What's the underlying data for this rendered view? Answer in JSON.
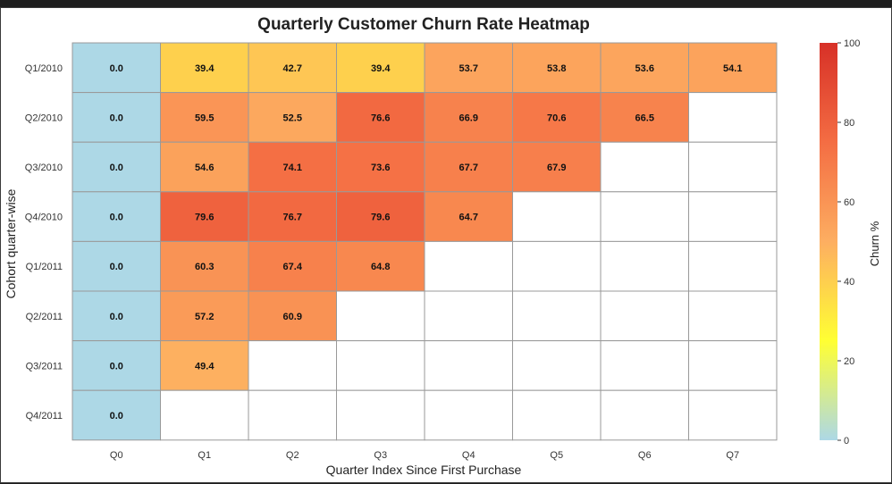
{
  "chart_data": {
    "type": "heatmap",
    "title": "Quarterly Customer Churn Rate Heatmap",
    "xlabel": "Quarter Index Since First Purchase",
    "ylabel": "Cohort quarter-wise",
    "x_categories": [
      "Q0",
      "Q1",
      "Q2",
      "Q3",
      "Q4",
      "Q5",
      "Q6",
      "Q7"
    ],
    "y_categories": [
      "Q1/2010",
      "Q2/2010",
      "Q3/2010",
      "Q4/2010",
      "Q1/2011",
      "Q2/2011",
      "Q3/2011",
      "Q4/2011"
    ],
    "values": [
      [
        0.0,
        39.4,
        42.7,
        39.4,
        53.7,
        53.8,
        53.6,
        54.1
      ],
      [
        0.0,
        59.5,
        52.5,
        76.6,
        66.9,
        70.6,
        66.5,
        null
      ],
      [
        0.0,
        54.6,
        74.1,
        73.6,
        67.7,
        67.9,
        null,
        null
      ],
      [
        0.0,
        79.6,
        76.7,
        79.6,
        64.7,
        null,
        null,
        null
      ],
      [
        0.0,
        60.3,
        67.4,
        64.8,
        null,
        null,
        null,
        null
      ],
      [
        0.0,
        57.2,
        60.9,
        null,
        null,
        null,
        null,
        null
      ],
      [
        0.0,
        49.4,
        null,
        null,
        null,
        null,
        null,
        null
      ],
      [
        0.0,
        null,
        null,
        null,
        null,
        null,
        null,
        null
      ]
    ],
    "value_range": [
      0,
      100
    ],
    "colorbar": {
      "label": "Churn %",
      "ticks": [
        0,
        20,
        40,
        60,
        80,
        100
      ],
      "colors": [
        "#add8e6",
        "#ffff33",
        "#fdae61",
        "#f46d43",
        "#d73027"
      ]
    },
    "missing_color": "#ffffff",
    "grid_color": "#999999"
  }
}
